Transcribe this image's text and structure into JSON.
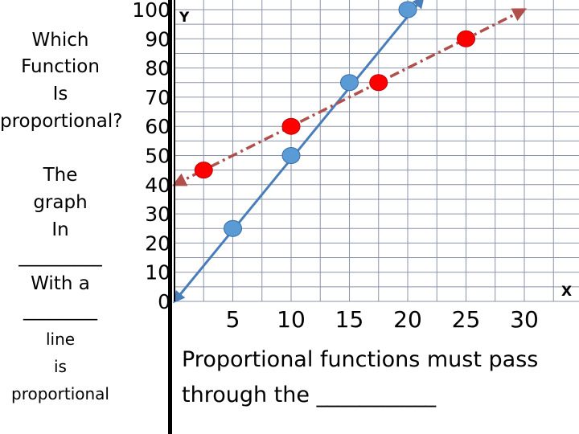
{
  "question": {
    "lines": [
      "Which",
      "Function",
      "Is",
      "proportional?"
    ]
  },
  "answer": {
    "lines": [
      "The",
      "graph",
      "In",
      "_________",
      "With a",
      "________",
      "line",
      "is",
      "proportional"
    ]
  },
  "note": {
    "line1": "Proportional functions must pass",
    "line2": "through the ___________"
  },
  "colors": {
    "grid": "#8a93a8",
    "blue_line": "#4a7ebb",
    "blue_point": "#5b9bd5",
    "red_line": "#b0504d",
    "red_point": "#ff0000",
    "axis": "#000000"
  },
  "chart_data": {
    "type": "line",
    "xlabel": "X",
    "ylabel": "Y",
    "x_ticks": [
      "5",
      "10",
      "15",
      "20",
      "25",
      "30"
    ],
    "y_ticks": [
      "0",
      "10",
      "20",
      "30",
      "40",
      "50",
      "60",
      "70",
      "80",
      "90",
      "100"
    ],
    "xlim": [
      0,
      35
    ],
    "ylim": [
      0,
      100
    ],
    "grid": true,
    "series": [
      {
        "style": "solid",
        "color": "#4a7ebb",
        "point_color": "#5b9bd5",
        "line_from": [
          0,
          0
        ],
        "line_to": [
          21.3,
          104
        ],
        "points": [
          [
            5,
            25
          ],
          [
            10,
            50
          ],
          [
            15,
            75
          ],
          [
            20,
            100
          ]
        ]
      },
      {
        "style": "dash-dot",
        "color": "#b0504d",
        "point_color": "#ff0000",
        "line_from": [
          0,
          40
        ],
        "line_to": [
          30,
          100
        ],
        "points": [
          [
            2.5,
            45
          ],
          [
            10,
            60
          ],
          [
            17.5,
            75
          ],
          [
            25,
            90
          ]
        ]
      }
    ]
  }
}
